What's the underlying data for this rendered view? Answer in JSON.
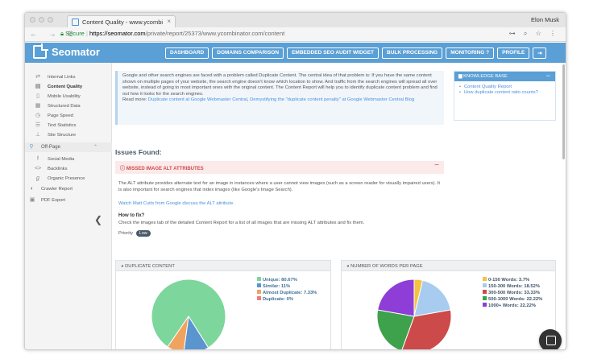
{
  "browser": {
    "tab_title": "Content Quality - www.ycombi",
    "tab_close": "×",
    "user_name": "Elon Musk",
    "nav_icons": "← → C",
    "secure_label": "Secure",
    "url_host": "https://seomator.com",
    "url_path": "/private/report/25373/www.ycombinator.com/content",
    "addr_icons": "⊶ ⌕ ☆ ⋮"
  },
  "app": {
    "logo_text": "Seomator",
    "nav": {
      "dashboard": "DASHBOARD",
      "domains": "DOMAINS COMPARISON",
      "embed": "EMBEDDED SEO AUDIT WIDGET",
      "bulk": "BULK PROCESSING",
      "monitoring": "MONITORING ?",
      "profile": "PROFILE",
      "logout": "⇥"
    }
  },
  "sidebar": {
    "items": [
      {
        "label": "Internal Links",
        "icon": "⇄"
      },
      {
        "label": "Content Quality",
        "icon": "▤"
      },
      {
        "label": "Mobile Usability",
        "icon": "▯"
      },
      {
        "label": "Structured Data",
        "icon": "▦"
      },
      {
        "label": "Page Speed",
        "icon": "◷"
      },
      {
        "label": "Text Statistics",
        "icon": "☰"
      },
      {
        "label": "Site Structure",
        "icon": "⊥"
      }
    ],
    "offpage": {
      "label": "Off-Page",
      "icon": "⚲",
      "chevron": "⌃"
    },
    "offpage_items": [
      {
        "label": "Social Media",
        "icon": "f"
      },
      {
        "label": "Backlinks",
        "icon": "<>"
      },
      {
        "label": "Organic Presence",
        "icon": "ℊ"
      }
    ],
    "bottom": [
      {
        "label": "Crawler Report",
        "icon": "◐"
      },
      {
        "label": "PDF Export",
        "icon": "▣"
      }
    ],
    "collapse": "❮"
  },
  "intro": {
    "text": "Google and other search engines are faced with a problem called Duplicate Content. The central idea of that problem is: If you have the same content shown on multiple pages of your website, the search engine doesn't know which location to show. And traffic from the search engines will spread all over website, instead of going to most important ones with the original content. The Content Report will help you to identify duplicate content problem and find out how it looks for the search engines.",
    "read_more": "Read more: ",
    "link1": "Duplicate content at Google Webmaster Central",
    "sep": ", ",
    "link2": "Demystifying the \"duplicate content penalty\" at Google Webmaster Central Blog"
  },
  "knowledge_base": {
    "title": "KNOWLEDGE BASE",
    "toggle": "−",
    "links": [
      "Content Quality Report",
      "How duplicate content ratio counts?"
    ]
  },
  "issues": {
    "heading": "Issues Found:",
    "issue_title": "MISSED IMAGE ALT ATTRIBUTES",
    "issue_icon": "ⓘ",
    "toggle": "−",
    "description": "The ALT attribute provides alternate text for an image in instances where a user cannot view images (such as a screen reader for visually impaired users). It is also important for search engines that index images (like Google's Image Search).",
    "watch_link": "Watch Matt Cutts from Google discuss the ALT attribute.",
    "how_to_fix": "How to fix?",
    "fix_text": "Check the images tab of the detailed Content Report for a list of all images that are missing ALT attributes and fix them.",
    "priority_label": "Priority",
    "priority_value": "Low"
  },
  "chart_data": [
    {
      "type": "pie",
      "title": "DUPLICATE CONTENT",
      "categories": [
        "Unique",
        "Similar",
        "Almost Duplicate",
        "Duplicate"
      ],
      "values": [
        80.67,
        11,
        7.33,
        0
      ],
      "labels": [
        "Unique: 80.67%",
        "Similar: 11%",
        "Almost Duplicate: 7.33%",
        "Duplicate: 0%"
      ],
      "colors": [
        "#7dd69b",
        "#5b95cf",
        "#f0a35e",
        "#f07b7b"
      ]
    },
    {
      "type": "pie",
      "title": "NUMBER OF WORDS PER PAGE",
      "categories": [
        "0-150 Words",
        "150-300 Words",
        "300-500 Words",
        "500-1000 Words",
        "1000+ Words"
      ],
      "values": [
        3.7,
        18.52,
        33.33,
        22.22,
        22.22
      ],
      "labels": [
        "0-150 Words: 3.7%",
        "150-300 Words: 18.52%",
        "300-500 Words: 33.33%",
        "500-1000 Words: 22.22%",
        "1000+ Words: 22.22%"
      ],
      "colors": [
        "#f5c242",
        "#a7ccf0",
        "#cc4a4a",
        "#3ea14c",
        "#8e3dd6"
      ]
    }
  ]
}
